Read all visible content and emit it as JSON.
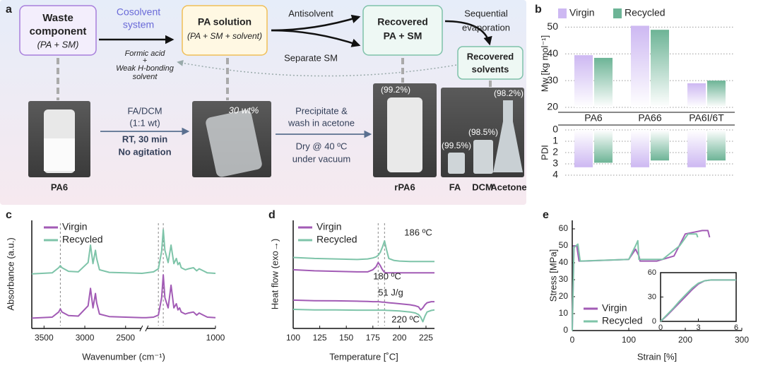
{
  "panel_labels": [
    "a",
    "b",
    "c",
    "d",
    "e"
  ],
  "diagram": {
    "waste": [
      "Waste",
      "component",
      "(PA + SM)"
    ],
    "cosolvent": [
      "Cosolvent",
      "system"
    ],
    "cosolvent_desc": [
      "Formic acid",
      "+",
      "Weak H-bonding",
      "solvent"
    ],
    "solution": [
      "PA solution",
      "(PA + SM + solvent)"
    ],
    "antisolvent": "Antisolvent",
    "separate": "Separate SM",
    "recovered": [
      "Recovered",
      "PA + SM"
    ],
    "evaporation": [
      "Sequential",
      "evaporation"
    ],
    "solvents": [
      "Recovered",
      "solvents"
    ],
    "step1": [
      "FA/DCM",
      "(1:1 wt)",
      "RT, 30 min",
      "No agitation"
    ],
    "step2": [
      "Precipitate &",
      "wash in acetone",
      "Dry @ 40 ºC",
      "under vacuum"
    ],
    "photo_labels": [
      "PA6",
      "rPA6",
      "FA",
      "DCM",
      "Acetone"
    ],
    "photo_notes": [
      "30 wt%",
      "(99.2%)",
      "(99.5%)",
      "(98.5%)",
      "(98.2%)"
    ]
  },
  "chart_data": [
    {
      "type": "bar",
      "ylabel": "Mw [kg mol⁻¹]",
      "categories": [
        "PA6",
        "PA66",
        "PA6I/6T"
      ],
      "series": [
        {
          "name": "Virgin",
          "color": "#cdb8f2",
          "values": [
            39.5,
            50.5,
            29
          ]
        },
        {
          "name": "Recycled",
          "color": "#6db496",
          "values": [
            38.5,
            49,
            30
          ]
        }
      ],
      "ylim": [
        20,
        53
      ],
      "yticks": [
        20,
        30,
        40,
        50
      ],
      "grid": true,
      "legend": "top"
    },
    {
      "type": "bar",
      "ylabel": "PDI",
      "series": [
        {
          "color": "#cdb8f2",
          "values": [
            3.3,
            3.3,
            3.3
          ]
        },
        {
          "color": "#6db496",
          "values": [
            2.9,
            2.7,
            2.7
          ]
        }
      ],
      "ylim": [
        0,
        4
      ],
      "yticks": [
        0,
        1,
        2,
        3,
        4
      ],
      "y_inverted": true,
      "grid": true
    },
    {
      "type": "line",
      "xlabel": "Wavenumber (cm⁻¹)",
      "ylabel": "Absorbance (a.u.)",
      "x": [
        3650,
        3400,
        3320,
        3300,
        3280,
        3200,
        3080,
        2960,
        2930,
        2900,
        2870,
        2855,
        2820,
        2700,
        2500,
        2300,
        1850,
        1760,
        1700,
        1660,
        1640,
        1620,
        1580,
        1545,
        1510,
        1480,
        1460,
        1440,
        1420,
        1370,
        1330,
        1270,
        1230,
        1200,
        1150,
        1100,
        1000
      ],
      "series": [
        {
          "name": "Virgin",
          "color": "#a25bb5",
          "values": [
            1.0,
            1.1,
            1.6,
            1.9,
            1.6,
            1.25,
            1.2,
            2.2,
            3.9,
            2.0,
            3.4,
            2.5,
            1.4,
            1.15,
            1.1,
            1.05,
            1.05,
            1.1,
            1.3,
            3.0,
            5.2,
            3.0,
            2.0,
            4.2,
            2.0,
            2.4,
            1.8,
            2.0,
            1.6,
            1.4,
            1.5,
            1.6,
            1.3,
            1.5,
            1.3,
            1.1,
            1.05
          ]
        },
        {
          "name": "Recycled",
          "color": "#7ec4a9",
          "values": [
            5.3,
            5.4,
            5.9,
            6.1,
            5.9,
            5.55,
            5.5,
            6.4,
            8.1,
            6.3,
            7.6,
            6.8,
            5.7,
            5.45,
            5.4,
            5.35,
            5.4,
            5.5,
            5.8,
            7.5,
            9.6,
            7.6,
            6.4,
            8.1,
            6.3,
            6.8,
            6.2,
            6.4,
            5.9,
            5.7,
            5.8,
            5.9,
            5.6,
            5.8,
            5.6,
            5.4,
            5.35
          ]
        }
      ],
      "xlim": [
        3650,
        1000
      ],
      "xbreak": [
        2300,
        1850
      ],
      "xticks": [
        3500,
        3000,
        2500,
        1000
      ],
      "ylim": [
        0,
        10.5
      ],
      "vlines": [
        3300,
        1700,
        1640
      ],
      "legend": "upper left"
    },
    {
      "type": "line",
      "xlabel": "Temperature [˚C]",
      "ylabel": "Heat flow (exo→)",
      "x": [
        100,
        120,
        140,
        160,
        170,
        175,
        178,
        180,
        182,
        184,
        186,
        188,
        190,
        195,
        200,
        210,
        215,
        218,
        220,
        222,
        224,
        226,
        230,
        233
      ],
      "series": [
        {
          "name": "Virgin",
          "color": "#a25bb5",
          "values": [
            5.7,
            5.6,
            5.55,
            5.5,
            5.5,
            5.7,
            6.0,
            6.4,
            6.1,
            5.7,
            5.45,
            5.4,
            5.4,
            5.4,
            5.4,
            5.4,
            5.4,
            5.4,
            5.4,
            5.4,
            5.4,
            5.4,
            5.4,
            5.4
          ]
        },
        {
          "name": "Recycled",
          "color": "#7ec4a9",
          "values": [
            6.9,
            6.8,
            6.75,
            6.7,
            6.75,
            6.85,
            6.95,
            7.1,
            7.4,
            7.9,
            8.5,
            7.6,
            6.8,
            6.6,
            6.55,
            6.5,
            6.5,
            6.5,
            6.5,
            6.5,
            6.5,
            6.5,
            6.5,
            6.5
          ]
        },
        {
          "color": "#a25bb5",
          "values": [
            2.75,
            2.7,
            2.68,
            2.65,
            2.62,
            2.6,
            2.6,
            2.6,
            2.58,
            2.55,
            2.55,
            2.52,
            2.5,
            2.45,
            2.4,
            2.3,
            2.2,
            2.1,
            1.8,
            2.0,
            2.3,
            2.5,
            2.6,
            2.6
          ]
        },
        {
          "color": "#7ec4a9",
          "values": [
            1.85,
            1.8,
            1.8,
            1.78,
            1.78,
            1.78,
            1.78,
            1.78,
            1.78,
            1.78,
            1.78,
            1.76,
            1.75,
            1.72,
            1.7,
            1.6,
            1.5,
            1.35,
            1.1,
            0.65,
            1.2,
            1.6,
            1.75,
            1.8
          ]
        }
      ],
      "xlim": [
        100,
        233
      ],
      "xticks": [
        100,
        125,
        150,
        175,
        200,
        225
      ],
      "ylim": [
        0,
        10.5
      ],
      "vlines": [
        180,
        186
      ],
      "annotations": [
        "186 ºC",
        "180 ºC",
        "51 J/g",
        "220 ºC"
      ],
      "legend": "upper left"
    },
    {
      "type": "line",
      "xlabel": "Strain [%]",
      "ylabel": "Stress [MPa]",
      "series": [
        {
          "name": "Virgin",
          "color": "#a25bb5",
          "x": [
            0,
            3,
            8,
            12,
            20,
            100,
            112,
            118,
            120,
            150,
            180,
            200,
            215,
            230,
            240,
            243
          ],
          "values": [
            0,
            50,
            50,
            41,
            41,
            42,
            48,
            44,
            41,
            41,
            44,
            57,
            58,
            59,
            59,
            55
          ]
        },
        {
          "name": "Recycled",
          "color": "#7ec4a9",
          "x": [
            0,
            3,
            10,
            14,
            100,
            112,
            116,
            118,
            160,
            190,
            205,
            220,
            222
          ],
          "values": [
            0,
            49,
            51,
            41,
            42,
            50,
            53,
            42,
            42,
            50,
            57,
            57,
            55
          ]
        }
      ],
      "xlim": [
        0,
        300
      ],
      "xticks": [
        0,
        100,
        200,
        300
      ],
      "ylim": [
        0,
        65
      ],
      "yticks": [
        0,
        10,
        20,
        30,
        40,
        50,
        60
      ],
      "legend": "lower center"
    },
    {
      "type": "line",
      "x": [
        0,
        0.5,
        1,
        1.5,
        2,
        2.5,
        3,
        3.5,
        4,
        5,
        6
      ],
      "series": [
        {
          "color": "#a25bb5",
          "values": [
            0,
            7,
            15,
            23,
            31,
            39,
            46,
            50,
            51,
            51,
            51
          ]
        },
        {
          "color": "#7ec4a9",
          "values": [
            0,
            8,
            16,
            25,
            33,
            41,
            47,
            50,
            51,
            51,
            51
          ]
        }
      ],
      "xlim": [
        0,
        6
      ],
      "xticks": [
        0,
        3,
        6
      ],
      "ylim": [
        0,
        60
      ],
      "yticks": [
        0,
        30,
        60
      ]
    }
  ]
}
